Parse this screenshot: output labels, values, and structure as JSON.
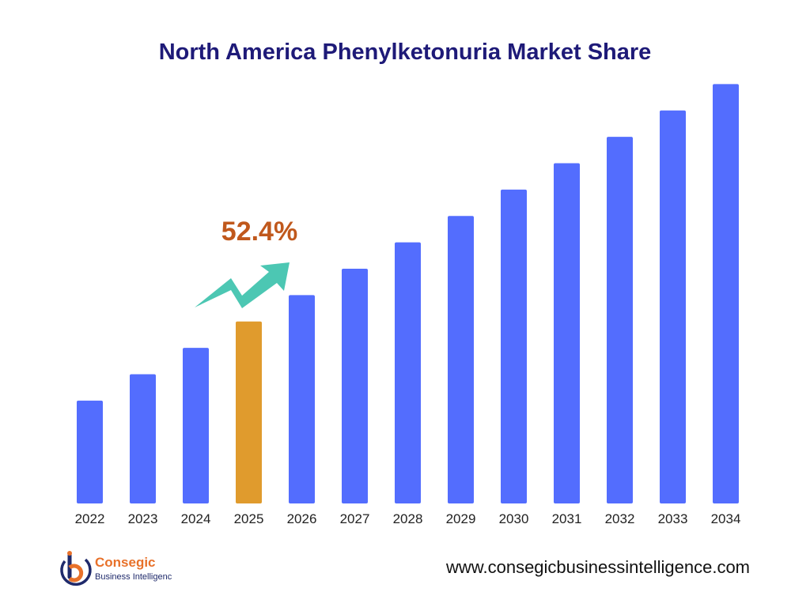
{
  "chart_data": {
    "type": "bar",
    "title": "North America Phenylketonuria Market Share",
    "categories": [
      "2022",
      "2023",
      "2024",
      "2025",
      "2026",
      "2027",
      "2028",
      "2029",
      "2030",
      "2031",
      "2032",
      "2033",
      "2034"
    ],
    "values": [
      19.5,
      24.5,
      29.5,
      34.5,
      39.5,
      44.5,
      49.5,
      54.5,
      59.5,
      64.5,
      69.5,
      74.5,
      79.5
    ],
    "ylim": [
      0,
      80
    ],
    "highlight_index": 3,
    "annotation": {
      "text": "52.4%",
      "category": "2025"
    },
    "grid": false,
    "legend": "none",
    "colors": {
      "bar": "#536dfe",
      "highlight": "#e09b2d",
      "annotation_text": "#c0581c",
      "arrow": "#4cc7b3"
    }
  },
  "footer": {
    "logo_name": "Consegic",
    "logo_sub": "Business Intelligenc",
    "website": "www.consegicbusinessintelligence.com",
    "logo_icon": "consegic-logo-icon",
    "colors": {
      "brand_orange": "#e8712a",
      "brand_navy": "#1f2a6b"
    }
  }
}
